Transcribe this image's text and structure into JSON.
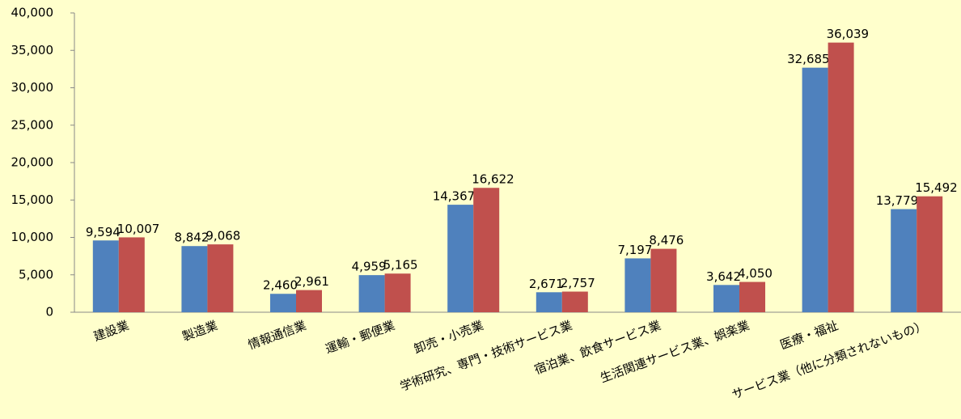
{
  "chart_data": {
    "type": "bar",
    "categories": [
      "建設業",
      "製造業",
      "情報通信業",
      "運輸・郵便業",
      "卸売・小売業",
      "学術研究、専門・技術サービス業",
      "宿泊業、飲食サービス業",
      "生活関連サービス業、娯楽業",
      "医療・福祉",
      "サービス業（他に分類されないもの）"
    ],
    "series": [
      {
        "color": "#4f81bd",
        "values": [
          9594,
          8842,
          2460,
          4959,
          14367,
          2671,
          7197,
          3642,
          32685,
          13779
        ],
        "value_labels": [
          "9,594",
          "8,842",
          "2,460",
          "4,959",
          "14,367",
          "2,671",
          "7,197",
          "3,642",
          "32,685",
          "13,779"
        ]
      },
      {
        "color": "#c0504d",
        "values": [
          10007,
          9068,
          2961,
          5165,
          16622,
          2757,
          8476,
          4050,
          36039,
          15492
        ],
        "value_labels": [
          "10,007",
          "9,068",
          "2,961",
          "5,165",
          "16,622",
          "2,757",
          "8,476",
          "4,050",
          "36,039",
          "15,492"
        ]
      }
    ],
    "ylim": [
      0,
      40000
    ],
    "yticks": [
      0,
      {
        "value": 5000,
        "label": "5,000"
      },
      {
        "value": 10000,
        "label": "10,000"
      },
      {
        "value": 15000,
        "label": "15,000"
      },
      {
        "value": 20000,
        "label": "20,000"
      },
      {
        "value": 25000,
        "label": "25,000"
      },
      {
        "value": 30000,
        "label": "30,000"
      },
      {
        "value": 35000,
        "label": "35,000"
      },
      {
        "value": 40000,
        "label": "40,000"
      }
    ],
    "grid": false
  }
}
